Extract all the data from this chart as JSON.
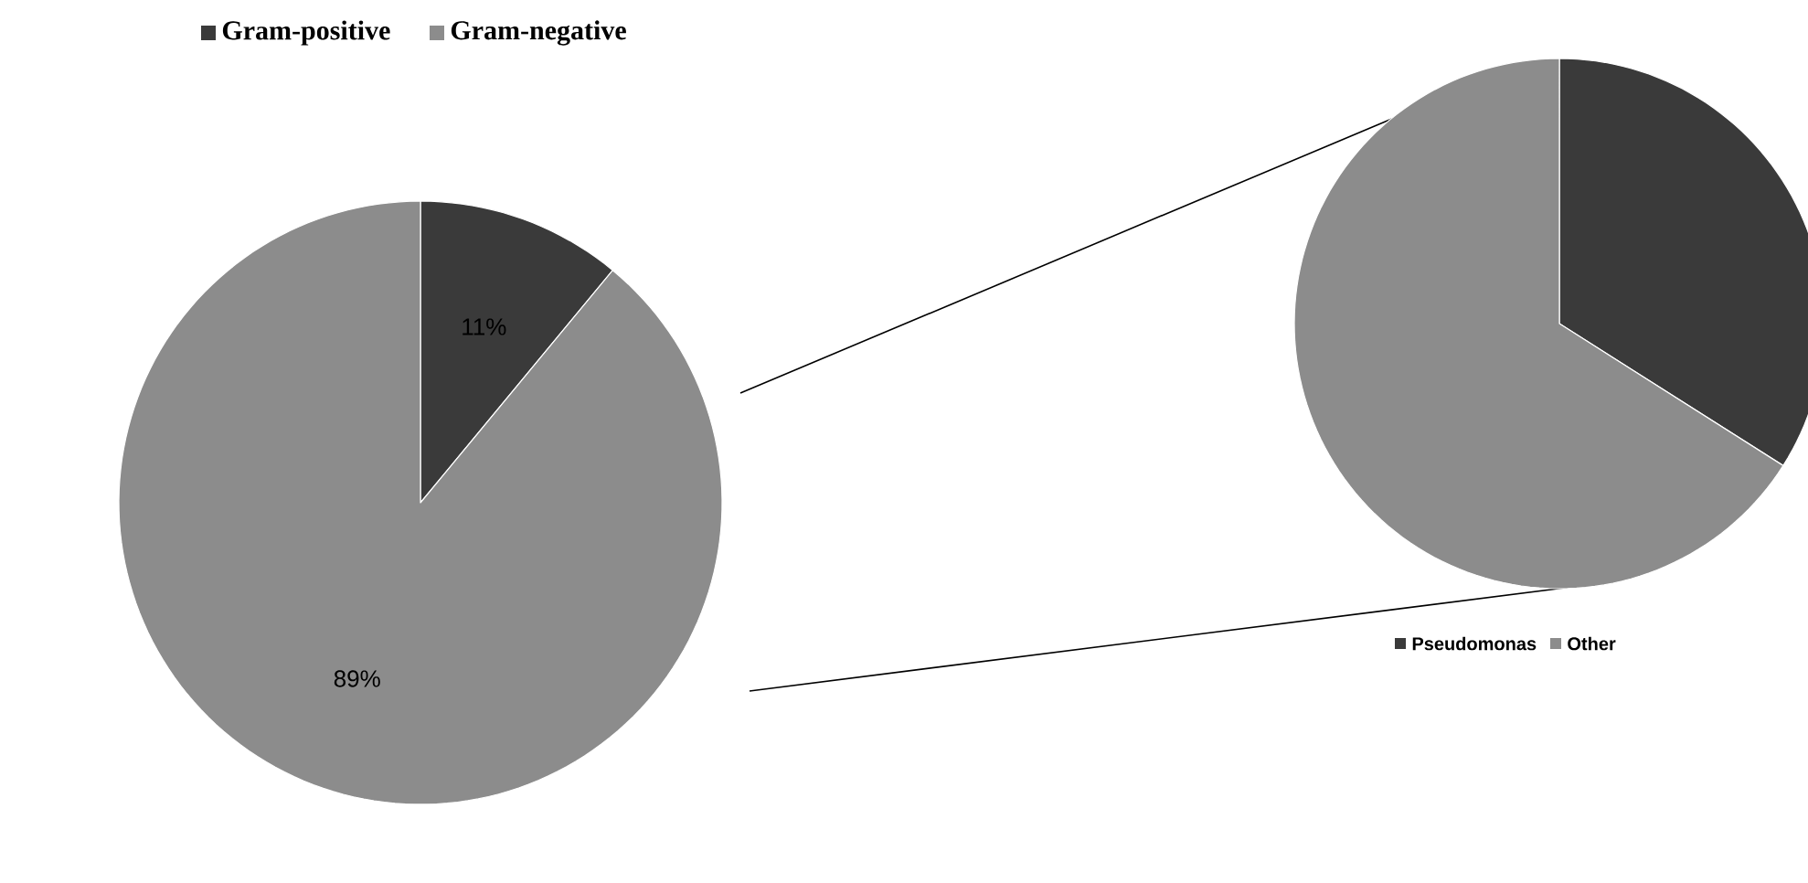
{
  "chart_data": [
    {
      "type": "pie",
      "categories": [
        "Gram-positive",
        "Gram-negative"
      ],
      "values": [
        11,
        89
      ],
      "colors": [
        "#3a3a3a",
        "#8c8c8c"
      ],
      "value_labels": [
        "11%",
        "89%"
      ],
      "legend": "top left"
    },
    {
      "type": "pie",
      "categories": [
        "Pseudomonas",
        "Other"
      ],
      "values": [
        34,
        66
      ],
      "colors": [
        "#3a3a3a",
        "#8c8c8c"
      ],
      "legend": "bottom"
    }
  ]
}
